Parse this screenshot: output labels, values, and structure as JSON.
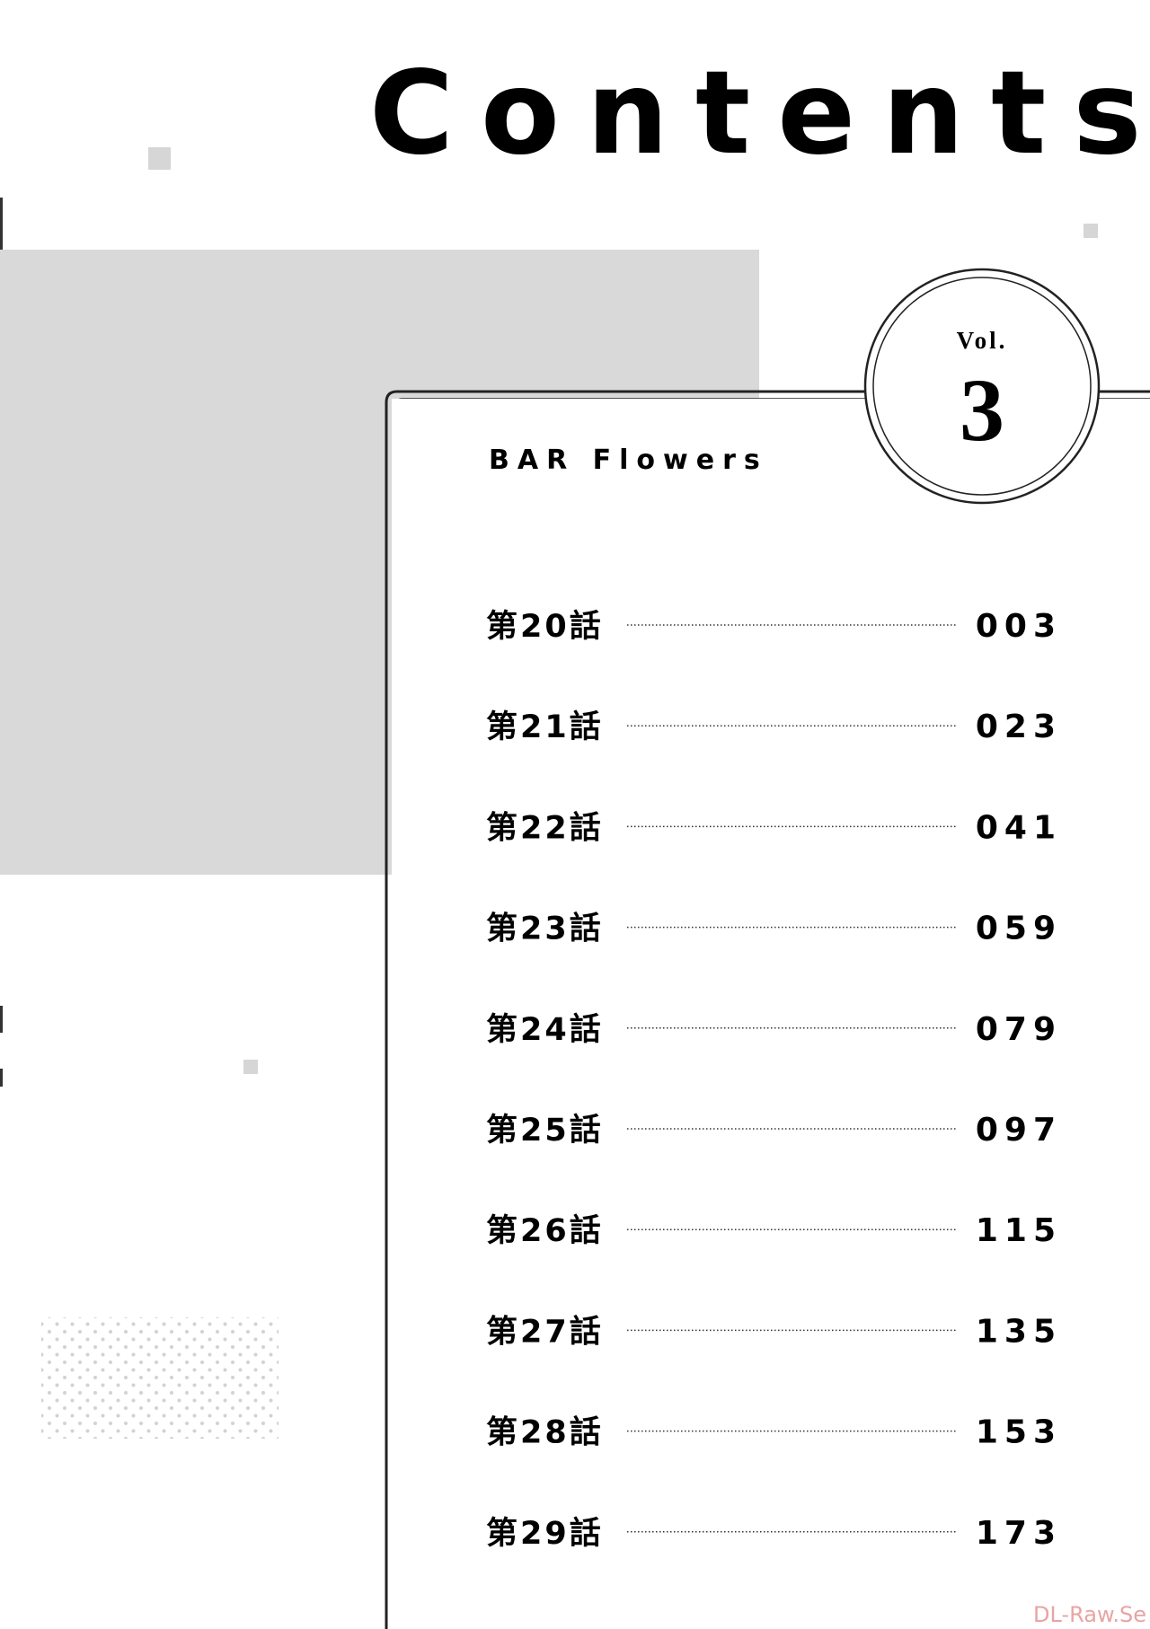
{
  "header": {
    "title": "Contents",
    "volume_label": "Vol.",
    "volume_number": "3",
    "series": "BAR Flowers"
  },
  "entries": [
    {
      "chapter": "第20話",
      "page": "003"
    },
    {
      "chapter": "第21話",
      "page": "023"
    },
    {
      "chapter": "第22話",
      "page": "041"
    },
    {
      "chapter": "第23話",
      "page": "059"
    },
    {
      "chapter": "第24話",
      "page": "079"
    },
    {
      "chapter": "第25話",
      "page": "097"
    },
    {
      "chapter": "第26話",
      "page": "115"
    },
    {
      "chapter": "第27話",
      "page": "135"
    },
    {
      "chapter": "第28話",
      "page": "153"
    },
    {
      "chapter": "第29話",
      "page": "173"
    }
  ],
  "watermark": "DL-Raw.Se"
}
